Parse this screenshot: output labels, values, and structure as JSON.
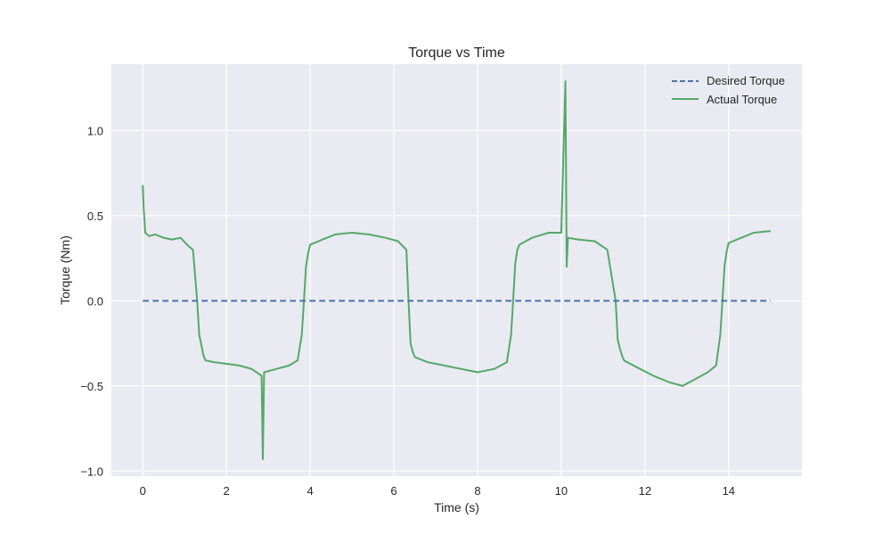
{
  "chart_data": {
    "type": "line",
    "title": "Torque vs Time",
    "xlabel": "Time (s)",
    "ylabel": "Torque (Nm)",
    "xlim": [
      -0.75,
      15.75
    ],
    "ylim": [
      -1.03,
      1.39
    ],
    "xticks": [
      0,
      2,
      4,
      6,
      8,
      10,
      12,
      14
    ],
    "xtick_labels": [
      "0",
      "2",
      "4",
      "6",
      "8",
      "10",
      "12",
      "14"
    ],
    "yticks": [
      -1.0,
      -0.5,
      0.0,
      0.5,
      1.0
    ],
    "ytick_labels": [
      "−1.0",
      "−0.5",
      "0.0",
      "0.5",
      "1.0"
    ],
    "grid": true,
    "legend_position": "top-right",
    "series": [
      {
        "name": "Desired Torque",
        "color": "#4c72b0",
        "style": "dashed",
        "x": [
          0,
          15
        ],
        "y": [
          0,
          0
        ]
      },
      {
        "name": "Actual Torque",
        "color": "#55a868",
        "style": "solid",
        "x": [
          0.0,
          0.02,
          0.06,
          0.15,
          0.3,
          0.5,
          0.7,
          0.9,
          1.1,
          1.2,
          1.3,
          1.35,
          1.4,
          1.45,
          1.5,
          1.7,
          2.0,
          2.3,
          2.6,
          2.84,
          2.87,
          2.9,
          3.2,
          3.5,
          3.7,
          3.8,
          3.85,
          3.9,
          3.95,
          4.0,
          4.3,
          4.6,
          5.0,
          5.4,
          5.8,
          6.1,
          6.3,
          6.35,
          6.4,
          6.45,
          6.5,
          6.8,
          7.2,
          7.6,
          8.0,
          8.4,
          8.7,
          8.8,
          8.85,
          8.9,
          8.95,
          9.0,
          9.3,
          9.7,
          10.0,
          10.1,
          10.13,
          10.16,
          10.4,
          10.8,
          11.1,
          11.3,
          11.35,
          11.4,
          11.45,
          11.5,
          11.8,
          12.2,
          12.6,
          12.9,
          13.2,
          13.5,
          13.7,
          13.8,
          13.85,
          13.9,
          13.95,
          14.0,
          14.3,
          14.6,
          15.0
        ],
        "y": [
          0.68,
          0.55,
          0.4,
          0.38,
          0.39,
          0.37,
          0.36,
          0.37,
          0.32,
          0.3,
          0.0,
          -0.2,
          -0.26,
          -0.32,
          -0.35,
          -0.36,
          -0.37,
          -0.38,
          -0.4,
          -0.44,
          -0.93,
          -0.42,
          -0.4,
          -0.38,
          -0.35,
          -0.2,
          0.0,
          0.2,
          0.28,
          0.33,
          0.36,
          0.39,
          0.4,
          0.39,
          0.37,
          0.35,
          0.3,
          0.0,
          -0.25,
          -0.3,
          -0.33,
          -0.36,
          -0.38,
          -0.4,
          -0.42,
          -0.4,
          -0.36,
          -0.2,
          0.0,
          0.22,
          0.3,
          0.33,
          0.37,
          0.4,
          0.4,
          1.29,
          0.2,
          0.37,
          0.36,
          0.35,
          0.3,
          0.0,
          -0.23,
          -0.28,
          -0.32,
          -0.35,
          -0.39,
          -0.44,
          -0.48,
          -0.5,
          -0.46,
          -0.42,
          -0.38,
          -0.2,
          0.0,
          0.2,
          0.29,
          0.34,
          0.37,
          0.4,
          0.41
        ]
      }
    ]
  }
}
